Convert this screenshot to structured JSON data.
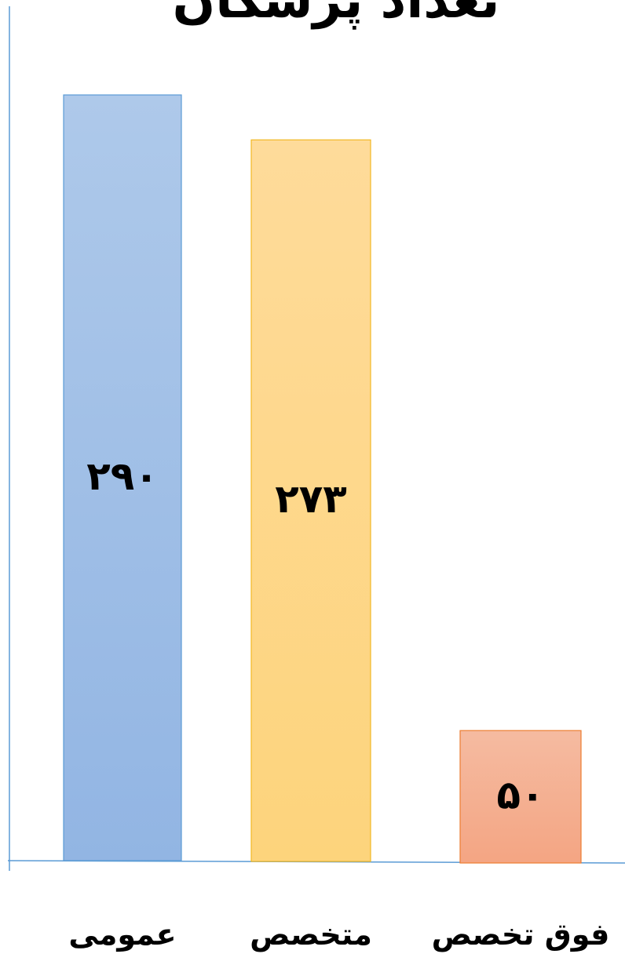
{
  "chart_data": {
    "type": "bar",
    "title": "تعداد پزشکان",
    "categories": [
      "عمومی",
      "متخصص",
      "فوق تخصص"
    ],
    "values": [
      290,
      273,
      50
    ],
    "value_labels": [
      "۲۹۰",
      "۲۷۳",
      "۵۰"
    ],
    "xlabel": "",
    "ylabel": "",
    "ylim": [
      0,
      290
    ],
    "grid": false,
    "legend": "none",
    "colors": {
      "bars": [
        {
          "top": "#aec9ea",
          "bottom": "#92b5e3",
          "stroke": "#5b9bd5"
        },
        {
          "top": "#fedb9a",
          "bottom": "#fdd47c",
          "stroke": "#f2b824"
        },
        {
          "top": "#f5bba1",
          "bottom": "#f4a583",
          "stroke": "#ed7d31"
        }
      ],
      "axis": "#5b9bd5"
    }
  }
}
